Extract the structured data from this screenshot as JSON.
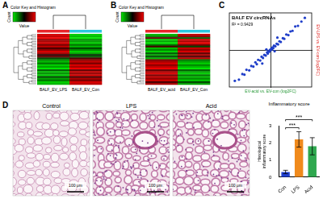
{
  "panels": {
    "A": {
      "letter": "A",
      "key_title": "Color Key and Histogram",
      "key_y_label": "Count",
      "key_x_label": "Value",
      "value_range": [
        -1,
        1
      ],
      "columns": [
        "BALF_EV_LPS",
        "BALF_EV_Con"
      ],
      "column_colors": [
        "#e8262b",
        "#2cc7df"
      ],
      "cells": [
        [
          0.9,
          -0.9
        ],
        [
          0.8,
          -0.8
        ],
        [
          1,
          -1
        ],
        [
          0.6,
          -0.6
        ],
        [
          0.7,
          -0.7
        ],
        [
          0.9,
          -0.9
        ],
        [
          0.5,
          -0.5
        ],
        [
          0.8,
          -0.8
        ],
        [
          0.3,
          -0.3
        ],
        [
          0.6,
          -0.6
        ],
        [
          0.9,
          -0.9
        ],
        [
          0.7,
          -0.7
        ],
        [
          0.2,
          -0.2
        ],
        [
          0.4,
          -0.4
        ],
        [
          -0.3,
          0.3
        ],
        [
          -0.6,
          0.6
        ],
        [
          -0.8,
          0.8
        ],
        [
          -0.5,
          0.5
        ],
        [
          -0.9,
          0.9
        ],
        [
          -0.7,
          0.7
        ],
        [
          -1,
          1
        ],
        [
          -0.4,
          0.4
        ],
        [
          -0.8,
          0.8
        ],
        [
          -0.6,
          0.6
        ],
        [
          -0.9,
          0.9
        ],
        [
          -0.3,
          0.3
        ],
        [
          -0.7,
          0.7
        ],
        [
          -0.5,
          0.5
        ],
        [
          -0.9,
          0.9
        ],
        [
          -0.8,
          0.8
        ]
      ]
    },
    "B": {
      "letter": "B",
      "key_title": "Color Key and Histogram",
      "key_y_label": "Count",
      "key_x_label": "Value",
      "value_range": [
        -1,
        1
      ],
      "columns": [
        "BALF_EV_acid",
        "BALF_EV_Con"
      ],
      "column_colors": [
        "#e8262b",
        "#2cc7df"
      ],
      "cells": [
        [
          -0.8,
          0.8
        ],
        [
          -0.6,
          0.6
        ],
        [
          0.4,
          -0.4
        ],
        [
          -0.9,
          0.9
        ],
        [
          -0.7,
          0.7
        ],
        [
          -1,
          1
        ],
        [
          -0.5,
          0.5
        ],
        [
          0.3,
          -0.3
        ],
        [
          -0.8,
          0.8
        ],
        [
          -0.6,
          0.6
        ],
        [
          -0.9,
          0.9
        ],
        [
          -0.4,
          0.4
        ],
        [
          -0.7,
          0.7
        ],
        [
          -0.3,
          0.3
        ],
        [
          -0.8,
          0.8
        ],
        [
          0.5,
          -0.5
        ],
        [
          0.7,
          -0.7
        ],
        [
          0.9,
          -0.9
        ],
        [
          0.6,
          -0.6
        ],
        [
          0.8,
          -0.8
        ],
        [
          1,
          -1
        ],
        [
          0.4,
          -0.4
        ],
        [
          0.7,
          -0.7
        ],
        [
          0.9,
          -0.9
        ],
        [
          0.5,
          -0.5
        ],
        [
          0.8,
          -0.8
        ],
        [
          0.6,
          -0.6
        ],
        [
          0.9,
          -0.9
        ],
        [
          0.3,
          -0.3
        ],
        [
          0.7,
          -0.7
        ]
      ]
    }
  },
  "histology": {
    "letter": "D",
    "images": [
      {
        "label": "Control",
        "scale_bar": "100 μm"
      },
      {
        "label": "LPS",
        "scale_bar": "100 μm"
      },
      {
        "label": "Acid",
        "scale_bar": "100 μm"
      }
    ]
  },
  "chart_data": [
    {
      "type": "scatter",
      "letter": "C",
      "title": "BALF EV circRNAs",
      "annotation": "R² = 0.9429",
      "x_label": "EV-acid vs. EV-con (log2FC)",
      "y_label": "EV-LPS vs. EV-con (log2FC)",
      "x": [
        -5.2,
        -4.6,
        -4.1,
        -3.8,
        -3.5,
        -3.1,
        -2.8,
        -2.5,
        -2.2,
        -2.0,
        -1.8,
        -1.5,
        -1.3,
        -1.1,
        -0.9,
        -0.7,
        -0.5,
        -0.4,
        -0.3,
        -0.2,
        -0.1,
        0.0,
        0.1,
        0.2,
        0.3,
        0.4,
        0.5,
        0.7,
        0.9,
        1.1,
        1.3,
        1.5,
        1.8,
        2.0,
        2.3,
        2.6,
        2.9,
        3.2,
        3.6,
        4.0,
        4.5,
        5.0,
        -0.6,
        0.6,
        1.0,
        -1.2
      ],
      "values": [
        -5.0,
        -4.8,
        -3.9,
        -4.0,
        -3.2,
        -3.3,
        -2.6,
        -2.7,
        -2.0,
        -2.3,
        -1.6,
        -1.7,
        -1.1,
        -1.3,
        -0.8,
        -0.9,
        -0.4,
        -0.6,
        -0.2,
        -0.3,
        0.0,
        -0.1,
        0.2,
        0.1,
        0.4,
        0.3,
        0.7,
        0.6,
        1.0,
        0.9,
        1.4,
        1.3,
        1.9,
        1.8,
        2.5,
        2.4,
        3.0,
        3.1,
        3.8,
        3.9,
        4.6,
        5.2,
        0.1,
        -0.2,
        2.0,
        -2.2
      ],
      "color": "#1f3ec9",
      "marker": "circle",
      "xlim": [
        -6,
        6
      ],
      "ylim": [
        -6,
        6
      ],
      "tick_labels": false,
      "grid": false
    },
    {
      "type": "bar",
      "title": "Inflammatory score",
      "y_label": "Histological inflammatory score",
      "categories": [
        "Con",
        "LPS",
        "Acid"
      ],
      "values": [
        0.3,
        2.2,
        1.8
      ],
      "errors": [
        0.1,
        0.45,
        0.5
      ],
      "colors": [
        "#1f3fd0",
        "#f08a1c",
        "#2fa84f"
      ],
      "ylim": [
        0,
        3
      ],
      "yticks": [
        0,
        1,
        2,
        3
      ],
      "grid": false,
      "annotations": [
        {
          "text": "***",
          "from": "Con",
          "to": "LPS"
        },
        {
          "text": "***",
          "from": "Con",
          "to": "Acid"
        }
      ]
    }
  ]
}
